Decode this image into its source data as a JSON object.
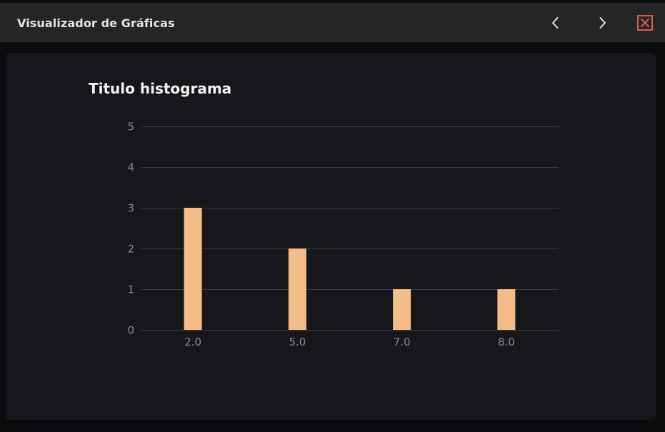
{
  "window": {
    "title": "Visualizador de Gráficas"
  },
  "toolbar": {
    "prev_icon": "chevron-left-icon",
    "next_icon": "chevron-right-icon",
    "close_icon": "close-icon"
  },
  "colors": {
    "bar": "#f4bd87",
    "close": "#e05a52",
    "grid": "#3a3b3f",
    "tick": "#8a8b8f"
  },
  "chart_data": {
    "type": "bar",
    "title": "Titulo histograma",
    "xlabel": "",
    "ylabel": "",
    "categories": [
      "2.0",
      "5.0",
      "7.0",
      "8.0"
    ],
    "values": [
      3,
      2,
      1,
      1
    ],
    "ylim": [
      0,
      5
    ],
    "yticks": [
      "0",
      "1",
      "2",
      "3",
      "4",
      "5"
    ],
    "grid": true
  }
}
